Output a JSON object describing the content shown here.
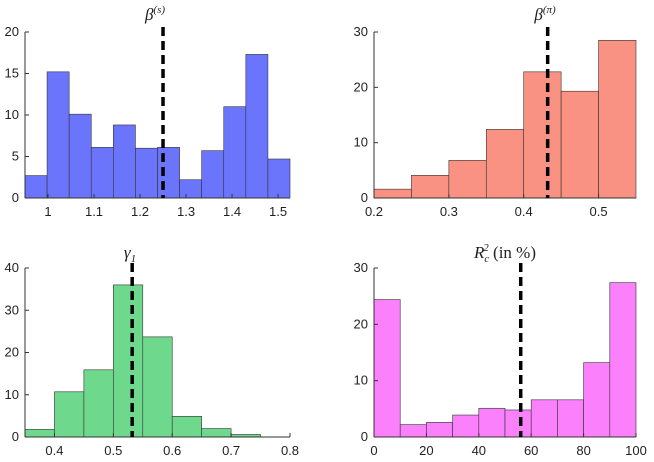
{
  "chart_data": [
    {
      "type": "histogram",
      "title": "β",
      "title_sup": "(s)",
      "color": "#6b75fc",
      "bins": [
        0.95,
        0.998,
        1.046,
        1.094,
        1.142,
        1.19,
        1.238,
        1.286,
        1.334,
        1.382,
        1.43,
        1.478,
        1.526
      ],
      "counts": [
        2.7,
        15.2,
        10.1,
        6.1,
        8.8,
        6,
        6.1,
        2.2,
        5.7,
        11,
        17.3,
        4.7
      ],
      "marker_line": 1.25,
      "xlim": [
        0.95,
        1.526
      ],
      "xticks": [
        1,
        1.1,
        1.2,
        1.3,
        1.4,
        1.5
      ],
      "ylim": [
        0,
        20
      ],
      "yticks": [
        0,
        5,
        10,
        15,
        20
      ]
    },
    {
      "type": "histogram",
      "title": "β",
      "title_sup": "(π)",
      "color": "#f99282",
      "bins": [
        0.2,
        0.25,
        0.3,
        0.35,
        0.4,
        0.45,
        0.5,
        0.55
      ],
      "counts": [
        1.6,
        4.1,
        6.8,
        12.4,
        22.8,
        19.3,
        28.5
      ],
      "marker_line": 0.432,
      "xlim": [
        0.2,
        0.55
      ],
      "xticks": [
        0.2,
        0.3,
        0.4,
        0.5
      ],
      "ylim": [
        0,
        30
      ],
      "yticks": [
        0,
        10,
        20,
        30
      ]
    },
    {
      "type": "histogram",
      "title": "γ",
      "title_sub": "1",
      "color": "#6ed98d",
      "bins": [
        0.35,
        0.4,
        0.45,
        0.5,
        0.55,
        0.6,
        0.65,
        0.7,
        0.75,
        0.8
      ],
      "counts": [
        1.8,
        10.7,
        15.9,
        36,
        23.7,
        4.9,
        2,
        0.6,
        0
      ],
      "marker_line": 0.532,
      "xlim": [
        0.35,
        0.8
      ],
      "xticks": [
        0.4,
        0.5,
        0.6,
        0.7,
        0.8
      ],
      "ylim": [
        0,
        40
      ],
      "yticks": [
        0,
        10,
        20,
        30,
        40
      ]
    },
    {
      "type": "histogram",
      "title": "R",
      "title_sub": "c",
      "title_sup": "2",
      "title_rest": " (in %)",
      "color": "#fb80fb",
      "bins": [
        0,
        10,
        20,
        30,
        40,
        50,
        60,
        70,
        80,
        90,
        100
      ],
      "counts": [
        24.4,
        2.2,
        2.6,
        3.9,
        5.1,
        4.8,
        6.6,
        6.6,
        13.2,
        27.4
      ],
      "marker_line": 56,
      "xlim": [
        0,
        100
      ],
      "xticks": [
        0,
        20,
        40,
        60,
        80,
        100
      ],
      "ylim": [
        0,
        30
      ],
      "yticks": [
        0,
        10,
        20,
        30
      ]
    }
  ]
}
